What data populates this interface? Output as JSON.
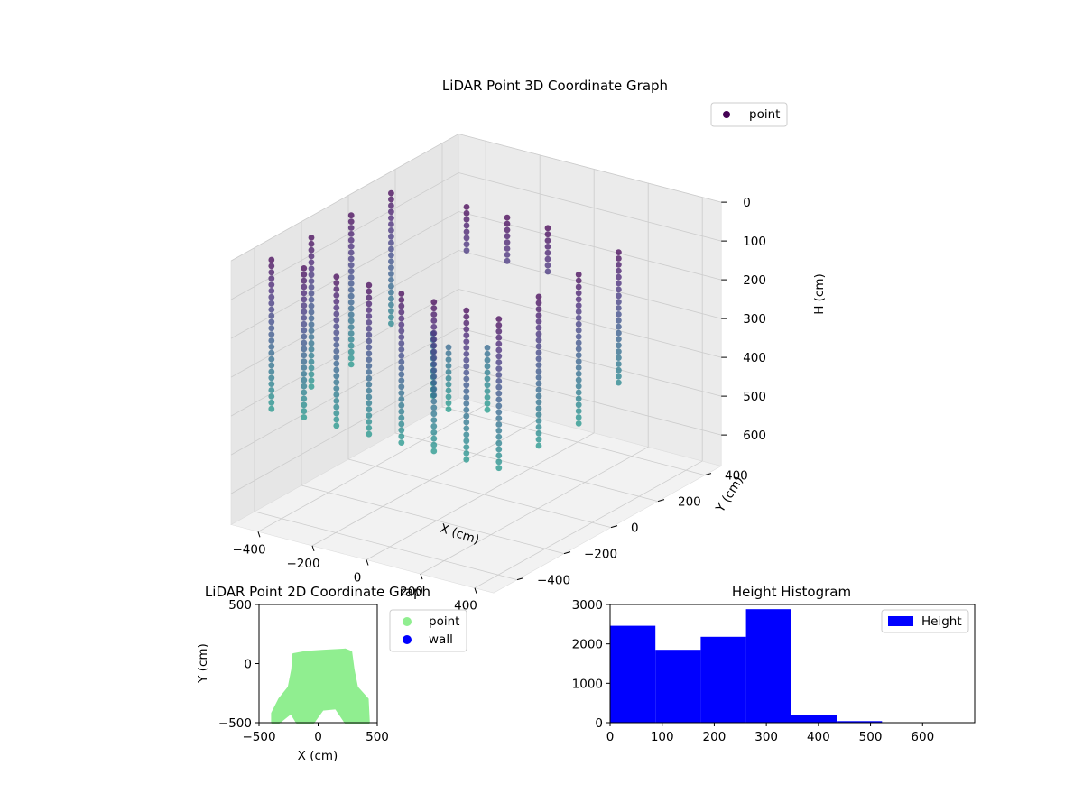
{
  "colors": {
    "viridis_top": "#440154",
    "viridis_mid": "#3b528b",
    "viridis_low": "#21918c",
    "point_2d": "#90ee90",
    "wall_2d": "#0000ff",
    "histogram_bar": "#0000ff",
    "axis_pane": "#f2f2f2",
    "grid": "#cccccc"
  },
  "chart_data": [
    {
      "type": "scatter",
      "subtype": "3d",
      "title": "LiDAR Point 3D Coordinate Graph",
      "xlabel": "X (cm)",
      "ylabel": "Y (cm)",
      "zlabel": "H (cm)",
      "xlim": [
        -500,
        470
      ],
      "ylim": [
        -500,
        470
      ],
      "zlim": [
        680,
        0
      ],
      "z_axis_inverted": true,
      "x_ticks": [
        "−400",
        "−200",
        "0",
        "200",
        "400"
      ],
      "y_ticks": [
        "−400",
        "−200",
        "0",
        "200",
        "400"
      ],
      "z_ticks": [
        "0",
        "100",
        "200",
        "300",
        "400",
        "500",
        "600"
      ],
      "colormap": "viridis",
      "legend": {
        "position": "top-right",
        "entries": [
          "point"
        ]
      },
      "grid": true,
      "series": [
        {
          "name": "point",
          "description_values": "room wall scan points; shown as vertical columns of points around the room perimeter, heights roughly 0–400 cm",
          "clusters": [
            {
              "x": -420,
              "y": -420,
              "h_range": [
                10,
                400
              ]
            },
            {
              "x": -300,
              "y": -420,
              "h_range": [
                10,
                400
              ]
            },
            {
              "x": -180,
              "y": -420,
              "h_range": [
                10,
                400
              ]
            },
            {
              "x": -60,
              "y": -420,
              "h_range": [
                10,
                400
              ]
            },
            {
              "x": 60,
              "y": -420,
              "h_range": [
                10,
                400
              ]
            },
            {
              "x": 180,
              "y": -420,
              "h_range": [
                10,
                400
              ]
            },
            {
              "x": 300,
              "y": -420,
              "h_range": [
                10,
                400
              ]
            },
            {
              "x": 420,
              "y": -420,
              "h_range": [
                10,
                400
              ]
            },
            {
              "x": -420,
              "y": -250,
              "h_range": [
                10,
                400
              ]
            },
            {
              "x": -420,
              "y": -80,
              "h_range": [
                10,
                400
              ]
            },
            {
              "x": -420,
              "y": 90,
              "h_range": [
                10,
                350
              ]
            },
            {
              "x": 420,
              "y": -250,
              "h_range": [
                10,
                400
              ]
            },
            {
              "x": 420,
              "y": -80,
              "h_range": [
                10,
                400
              ]
            },
            {
              "x": 420,
              "y": 90,
              "h_range": [
                10,
                350
              ]
            },
            {
              "x": -150,
              "y": 100,
              "h_range": [
                0,
                120
              ]
            },
            {
              "x": 0,
              "y": 100,
              "h_range": [
                0,
                120
              ]
            },
            {
              "x": 150,
              "y": 100,
              "h_range": [
                0,
                120
              ]
            },
            {
              "x": -100,
              "y": -100,
              "h_range": [
                250,
                420
              ]
            },
            {
              "x": 0,
              "y": -150,
              "h_range": [
                250,
                420
              ]
            },
            {
              "x": 100,
              "y": -100,
              "h_range": [
                250,
                420
              ]
            }
          ]
        }
      ]
    },
    {
      "type": "scatter",
      "title": "LiDAR Point 2D Coordinate Graph",
      "xlabel": "X (cm)",
      "ylabel": "Y (cm)",
      "xlim": [
        -500,
        500
      ],
      "ylim": [
        -500,
        500
      ],
      "x_ticks": [
        "−500",
        "0",
        "500"
      ],
      "y_ticks": [
        "500",
        "0",
        "−500"
      ],
      "legend": {
        "position": "outside-right",
        "entries": [
          "point",
          "wall"
        ]
      },
      "series": [
        {
          "name": "point",
          "outline": [
            [
              -390,
              -500
            ],
            [
              -390,
              -420
            ],
            [
              -330,
              -300
            ],
            [
              -250,
              -200
            ],
            [
              -220,
              -50
            ],
            [
              -210,
              80
            ],
            [
              -100,
              100
            ],
            [
              50,
              110
            ],
            [
              230,
              120
            ],
            [
              280,
              100
            ],
            [
              300,
              -50
            ],
            [
              330,
              -200
            ],
            [
              420,
              -300
            ],
            [
              430,
              -500
            ],
            [
              230,
              -500
            ],
            [
              150,
              -380
            ],
            [
              40,
              -390
            ],
            [
              -40,
              -500
            ],
            [
              -180,
              -500
            ],
            [
              -230,
              -420
            ],
            [
              -330,
              -500
            ]
          ]
        },
        {
          "name": "wall",
          "values": []
        }
      ]
    },
    {
      "type": "bar",
      "subtype": "histogram",
      "title": "Height Histogram",
      "xlim": [
        0,
        700
      ],
      "ylim": [
        0,
        3000
      ],
      "x_ticks": [
        "0",
        "100",
        "200",
        "300",
        "400",
        "500",
        "600"
      ],
      "y_ticks": [
        "0",
        "1000",
        "2000",
        "3000"
      ],
      "legend": {
        "position": "top-right",
        "entries": [
          "Height"
        ]
      },
      "series": [
        {
          "name": "Height",
          "bins": [
            {
              "start": 0,
              "end": 87,
              "count": 2460
            },
            {
              "start": 87,
              "end": 174,
              "count": 1850
            },
            {
              "start": 174,
              "end": 261,
              "count": 2180
            },
            {
              "start": 261,
              "end": 348,
              "count": 2880
            },
            {
              "start": 348,
              "end": 435,
              "count": 200
            },
            {
              "start": 435,
              "end": 522,
              "count": 40
            },
            {
              "start": 522,
              "end": 609,
              "count": 0
            },
            {
              "start": 609,
              "end": 696,
              "count": 0
            }
          ]
        }
      ]
    }
  ]
}
